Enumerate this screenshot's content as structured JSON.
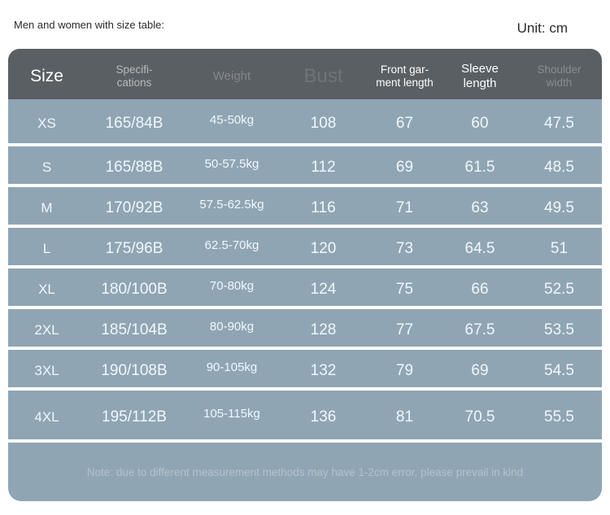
{
  "page": {
    "heading": "Men and women with size table:",
    "unit": "Unit: cm"
  },
  "colors": {
    "header_bg": "#5a5f63",
    "row_bg": "#8fa5b4",
    "header_text_bright": "#ffffff",
    "header_text_muted": "#84888d",
    "row_text": "#f2f7fa",
    "note_text": "#b4c2cc"
  },
  "table": {
    "headers": {
      "size": "Size",
      "spec": "Specifi-\ncations",
      "weight": "Weight",
      "bust": "Bust",
      "front": "Front gar-\nment length",
      "sleeve": "Sleeve\nlength",
      "shoulder": "Shoulder\nwidth"
    },
    "rows": [
      {
        "size": "XS",
        "spec": "165/84B",
        "weight": "45-50kg",
        "bust": "108",
        "front": "67",
        "sleeve": "60",
        "shoulder": "47.5"
      },
      {
        "size": "S",
        "spec": "165/88B",
        "weight": "50-57.5kg",
        "bust": "112",
        "front": "69",
        "sleeve": "61.5",
        "shoulder": "48.5"
      },
      {
        "size": "M",
        "spec": "170/92B",
        "weight": "57.5-62.5kg",
        "bust": "116",
        "front": "71",
        "sleeve": "63",
        "shoulder": "49.5"
      },
      {
        "size": "L",
        "spec": "175/96B",
        "weight": "62.5-70kg",
        "bust": "120",
        "front": "73",
        "sleeve": "64.5",
        "shoulder": "51"
      },
      {
        "size": "XL",
        "spec": "180/100B",
        "weight": "70-80kg",
        "bust": "124",
        "front": "75",
        "sleeve": "66",
        "shoulder": "52.5"
      },
      {
        "size": "2XL",
        "spec": "185/104B",
        "weight": "80-90kg",
        "bust": "128",
        "front": "77",
        "sleeve": "67.5",
        "shoulder": "53.5"
      },
      {
        "size": "3XL",
        "spec": "190/108B",
        "weight": "90-105kg",
        "bust": "132",
        "front": "79",
        "sleeve": "69",
        "shoulder": "54.5"
      },
      {
        "size": "4XL",
        "spec": "195/112B",
        "weight": "105-115kg",
        "bust": "136",
        "front": "81",
        "sleeve": "70.5",
        "shoulder": "55.5"
      }
    ],
    "note": "Note: due to different measurement methods may have 1-2cm error, please prevail in kind"
  }
}
